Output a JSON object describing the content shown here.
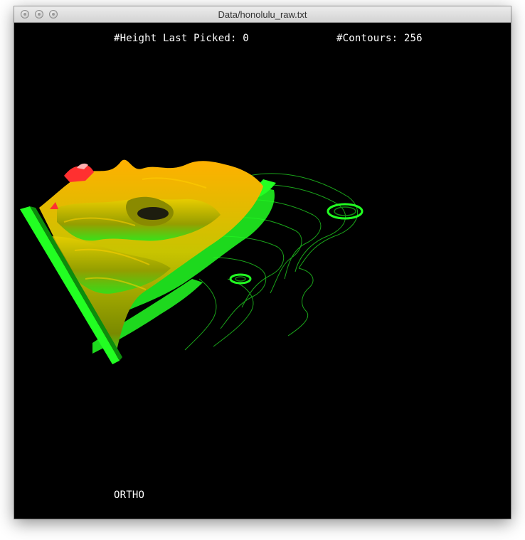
{
  "window": {
    "title": "Data/honolulu_raw.txt"
  },
  "hud": {
    "height_label": "#Height Last Picked: 0",
    "contours_label": "#Contours: 256",
    "projection_mode": "ORTHO"
  },
  "colors": {
    "background": "#000000",
    "low": "#22ff22",
    "mid": "#c8d400",
    "high": "#ffb000",
    "peak": "#ff3030",
    "contour_line": "#1aa31a"
  }
}
